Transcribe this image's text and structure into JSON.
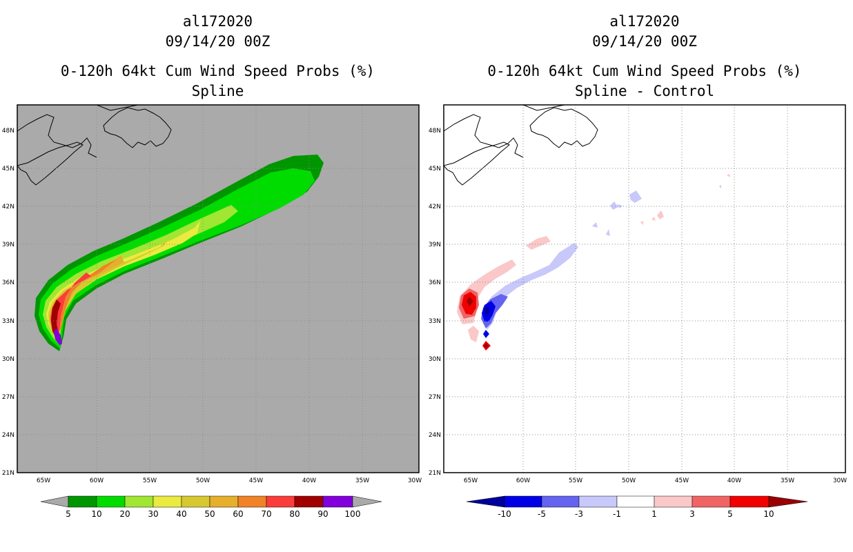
{
  "left_panel": {
    "storm_id": "al172020",
    "datetime": "09/14/20 00Z",
    "product": "0-120h 64kt Cum Wind Speed Probs (%)",
    "subtitle": "Spline",
    "background_color": "#aaaaaa",
    "colorbar": {
      "labels": [
        "5",
        "10",
        "20",
        "30",
        "40",
        "50",
        "60",
        "70",
        "80",
        "90",
        "100"
      ],
      "colors": [
        "#009600",
        "#00dc00",
        "#a0e632",
        "#e6dc32",
        "#e6dc32",
        "#e6af2d",
        "#f08228",
        "#fa3c3c",
        "#a00000",
        "#8200dc"
      ],
      "end_color": "#aaaaaa"
    }
  },
  "right_panel": {
    "storm_id": "al172020",
    "datetime": "09/14/20 00Z",
    "product": "0-120h 64kt Cum Wind Speed Probs (%)",
    "subtitle": "Spline - Control",
    "background_color": "#ffffff",
    "colorbar": {
      "labels": [
        "-10",
        "-5",
        "-3",
        "-1",
        "1",
        "3",
        "5",
        "10"
      ],
      "colors": [
        "#0000e6",
        "#6464f0",
        "#c8c8fa",
        "#ffffff",
        "#fac8c8",
        "#f06464",
        "#f00000"
      ],
      "low_end_color": "#00009a",
      "high_end_color": "#9a0000"
    }
  },
  "axes": {
    "lon_labels": [
      "65W",
      "60W",
      "55W",
      "50W",
      "45W",
      "40W",
      "35W",
      "30W"
    ],
    "lat_labels": [
      "48N",
      "45N",
      "42N",
      "39N",
      "36N",
      "33N",
      "30N",
      "27N",
      "24N",
      "21N"
    ]
  }
}
